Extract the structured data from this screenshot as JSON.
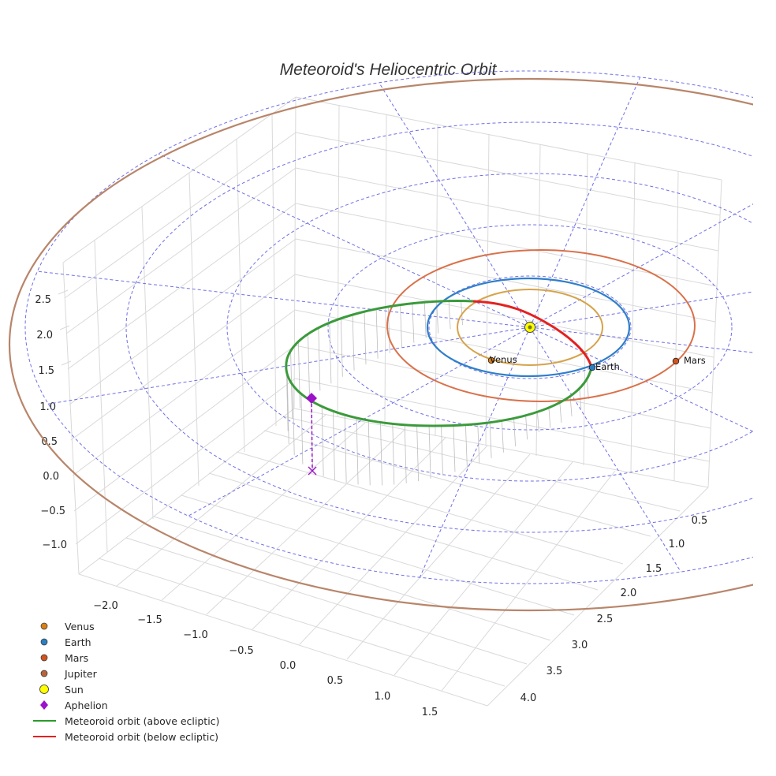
{
  "chart_data": {
    "type": "3d-line",
    "title": "Meteoroid's Heliocentric Orbit",
    "x_ticks": [
      "−2.0",
      "−1.5",
      "−1.0",
      "−0.5",
      "0.0",
      "0.5",
      "1.0",
      "1.5"
    ],
    "y_ticks": [
      "0.5",
      "1.0",
      "1.5",
      "2.0",
      "2.5",
      "3.0",
      "3.5",
      "4.0"
    ],
    "z_ticks": [
      "2.5",
      "2.0",
      "1.5",
      "1.0",
      "0.5",
      "0.0",
      "−0.5",
      "−1.0"
    ],
    "xlim": [
      -2.2,
      1.8
    ],
    "ylim": [
      0.2,
      4.3
    ],
    "zlim": [
      -1.3,
      2.9
    ],
    "planet_orbit_radii_au": {
      "Venus": 0.72,
      "Earth": 1.0,
      "Mars": 1.52,
      "Jupiter": 5.2
    },
    "ecliptic_grid_circle_radii_au": [
      1,
      2,
      3,
      4,
      5
    ],
    "planets": [
      {
        "name": "Venus",
        "label": "Venus",
        "color": "#d6962e"
      },
      {
        "name": "Earth",
        "label": "Earth",
        "color": "#2f7fc9"
      },
      {
        "name": "Mars",
        "label": "Mars",
        "color": "#d1541f"
      },
      {
        "name": "Jupiter",
        "label": "",
        "color": "#b8856a"
      }
    ],
    "series": [
      {
        "name": "Meteoroid orbit (above ecliptic)",
        "color": "#3b9a3b"
      },
      {
        "name": "Meteoroid orbit (below ecliptic)",
        "color": "#e52020"
      }
    ],
    "aphelion": {
      "name": "Aphelion",
      "color": "#9b12c9"
    },
    "legend": [
      {
        "label": "Venus",
        "kind": "dot",
        "color": "#d97f14"
      },
      {
        "label": "Earth",
        "kind": "dot",
        "color": "#2b7fc1"
      },
      {
        "label": "Mars",
        "kind": "dot",
        "color": "#d1541f"
      },
      {
        "label": "Jupiter",
        "kind": "dot",
        "color": "#b6643b"
      },
      {
        "label": "Sun",
        "kind": "sun",
        "color": "#ffff00"
      },
      {
        "label": "Aphelion",
        "kind": "diamond",
        "color": "#9b12c9"
      },
      {
        "label": "Meteoroid orbit (above ecliptic)",
        "kind": "line",
        "color": "#2a9a2a"
      },
      {
        "label": "Meteoroid orbit (below ecliptic)",
        "kind": "line",
        "color": "#e52020"
      }
    ]
  }
}
